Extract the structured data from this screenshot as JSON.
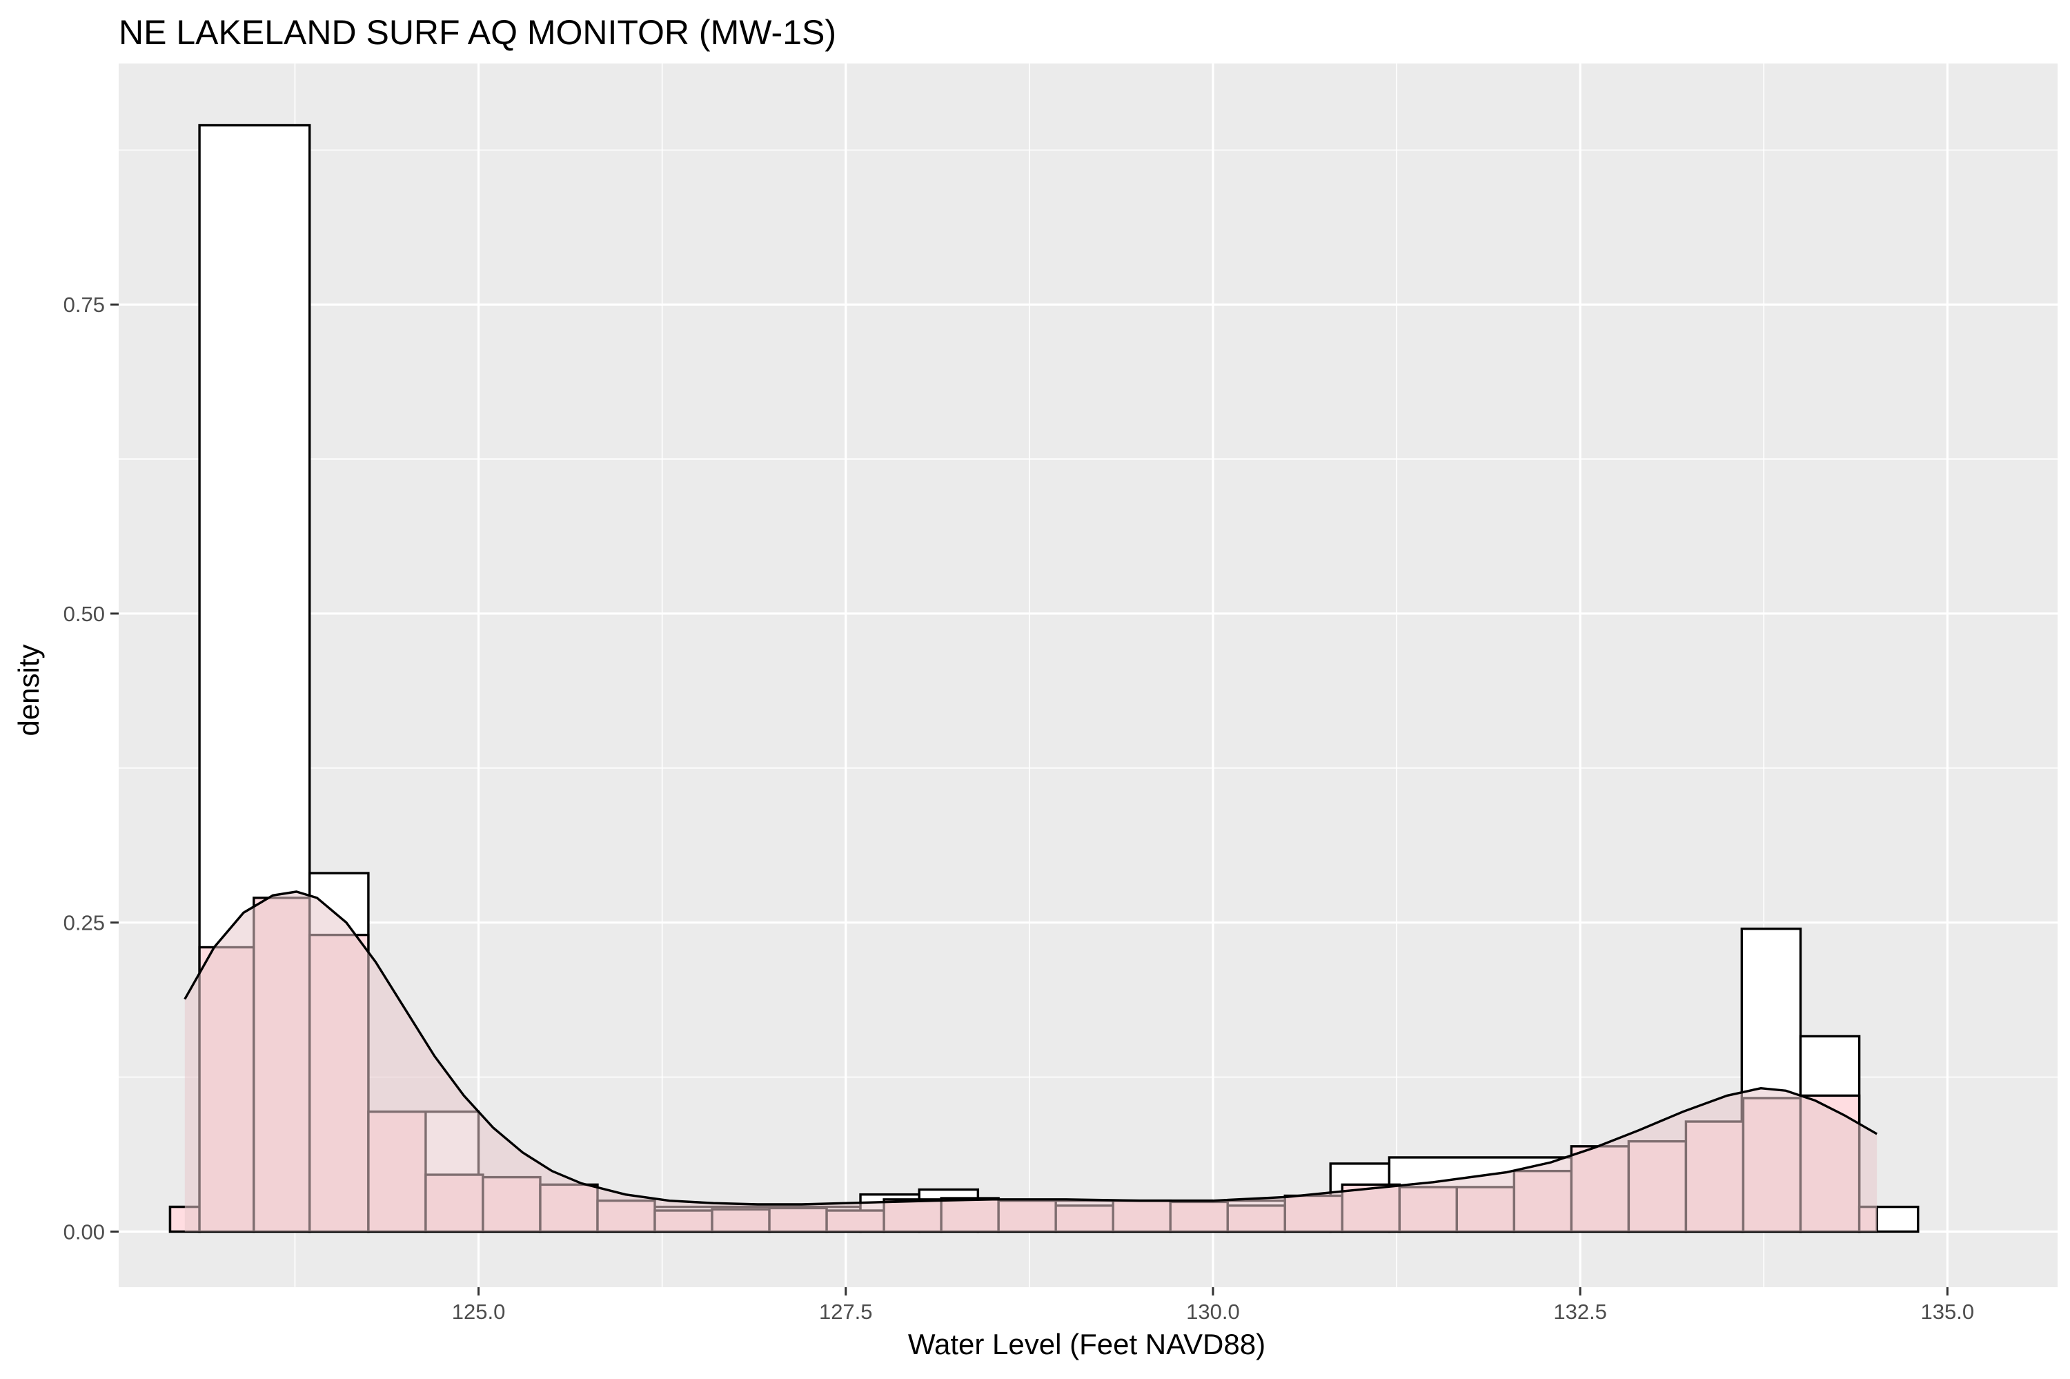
{
  "chart_data": {
    "type": "histogram",
    "title": "NE LAKELAND SURF AQ MONITOR (MW-1S)",
    "xlabel": "Water Level (Feet NAVD88)",
    "ylabel": "density",
    "xlim": [
      122.55,
      135.75
    ],
    "ylim": [
      -0.045,
      0.945
    ],
    "x_ticks": [
      125.0,
      127.5,
      130.0,
      132.5,
      135.0
    ],
    "x_tick_labels": [
      "125.0",
      "127.5",
      "130.0",
      "132.5",
      "135.0"
    ],
    "y_ticks": [
      0.0,
      0.25,
      0.5,
      0.75
    ],
    "y_tick_labels": [
      "0.00",
      "0.25",
      "0.50",
      "0.75"
    ],
    "grid": true,
    "colors": {
      "panel": "#ebebeb",
      "grid": "#ffffff",
      "histogram_outline_fill": "#ffffff",
      "histogram_pink_fill": "#ffdde1",
      "density_fill": "#e8c9cc"
    },
    "series": [
      {
        "kind": "histogram",
        "fill": "#ffffff",
        "bins": [
          {
            "x0": 122.9,
            "x1": 123.1,
            "value": 0.02
          },
          {
            "x0": 123.1,
            "x1": 123.85,
            "value": 0.895
          },
          {
            "x0": 123.85,
            "x1": 124.25,
            "value": 0.29
          },
          {
            "x0": 124.25,
            "x1": 125.0,
            "value": 0.097
          },
          {
            "x0": 125.0,
            "x1": 127.6,
            "value": 0.02
          },
          {
            "x0": 127.6,
            "x1": 128.0,
            "value": 0.03
          },
          {
            "x0": 128.0,
            "x1": 128.4,
            "value": 0.034
          },
          {
            "x0": 128.4,
            "x1": 130.8,
            "value": 0.025
          },
          {
            "x0": 130.8,
            "x1": 131.2,
            "value": 0.055
          },
          {
            "x0": 131.2,
            "x1": 133.6,
            "value": 0.06
          },
          {
            "x0": 133.6,
            "x1": 134.0,
            "value": 0.245
          },
          {
            "x0": 134.0,
            "x1": 134.4,
            "value": 0.158
          },
          {
            "x0": 134.4,
            "x1": 134.8,
            "value": 0.02
          }
        ]
      },
      {
        "kind": "histogram",
        "fill": "#ffdde1",
        "bins": [
          {
            "x0": 122.9,
            "x1": 123.1,
            "value": 0.02
          },
          {
            "x0": 123.1,
            "x1": 123.47,
            "value": 0.23
          },
          {
            "x0": 123.47,
            "x1": 123.85,
            "value": 0.27
          },
          {
            "x0": 123.85,
            "x1": 124.25,
            "value": 0.24
          },
          {
            "x0": 124.25,
            "x1": 124.64,
            "value": 0.097
          },
          {
            "x0": 124.64,
            "x1": 125.03,
            "value": 0.046
          },
          {
            "x0": 125.03,
            "x1": 125.42,
            "value": 0.044
          },
          {
            "x0": 125.42,
            "x1": 125.81,
            "value": 0.038
          },
          {
            "x0": 125.81,
            "x1": 126.2,
            "value": 0.025
          },
          {
            "x0": 126.2,
            "x1": 126.59,
            "value": 0.017
          },
          {
            "x0": 126.59,
            "x1": 126.98,
            "value": 0.018
          },
          {
            "x0": 126.98,
            "x1": 127.37,
            "value": 0.019
          },
          {
            "x0": 127.37,
            "x1": 127.76,
            "value": 0.017
          },
          {
            "x0": 127.76,
            "x1": 128.15,
            "value": 0.026
          },
          {
            "x0": 128.15,
            "x1": 128.54,
            "value": 0.027
          },
          {
            "x0": 128.54,
            "x1": 128.93,
            "value": 0.025
          },
          {
            "x0": 128.93,
            "x1": 129.32,
            "value": 0.021
          },
          {
            "x0": 129.32,
            "x1": 129.71,
            "value": 0.025
          },
          {
            "x0": 129.71,
            "x1": 130.1,
            "value": 0.024
          },
          {
            "x0": 130.1,
            "x1": 130.49,
            "value": 0.021
          },
          {
            "x0": 130.49,
            "x1": 130.88,
            "value": 0.029
          },
          {
            "x0": 130.88,
            "x1": 131.27,
            "value": 0.038
          },
          {
            "x0": 131.27,
            "x1": 131.66,
            "value": 0.036
          },
          {
            "x0": 131.66,
            "x1": 132.05,
            "value": 0.036
          },
          {
            "x0": 132.05,
            "x1": 132.44,
            "value": 0.049
          },
          {
            "x0": 132.44,
            "x1": 132.83,
            "value": 0.069
          },
          {
            "x0": 132.83,
            "x1": 133.22,
            "value": 0.073
          },
          {
            "x0": 133.22,
            "x1": 133.61,
            "value": 0.089
          },
          {
            "x0": 133.61,
            "x1": 134.0,
            "value": 0.108
          },
          {
            "x0": 134.0,
            "x1": 134.4,
            "value": 0.11
          },
          {
            "x0": 134.4,
            "x1": 134.52,
            "value": 0.02
          }
        ]
      },
      {
        "kind": "density",
        "fill": "#e8c9cc",
        "fill_opacity": 0.55,
        "x": [
          123.0,
          123.2,
          123.4,
          123.6,
          123.76,
          123.9,
          124.1,
          124.3,
          124.5,
          124.7,
          124.9,
          125.1,
          125.3,
          125.5,
          125.7,
          126.0,
          126.3,
          126.6,
          126.9,
          127.2,
          127.5,
          127.8,
          128.1,
          128.5,
          129.0,
          129.5,
          130.0,
          130.5,
          131.0,
          131.5,
          132.0,
          132.3,
          132.6,
          132.9,
          133.2,
          133.5,
          133.73,
          133.9,
          134.1,
          134.3,
          134.52
        ],
        "y": [
          0.188,
          0.23,
          0.258,
          0.272,
          0.275,
          0.27,
          0.25,
          0.218,
          0.18,
          0.142,
          0.11,
          0.084,
          0.064,
          0.049,
          0.039,
          0.03,
          0.025,
          0.023,
          0.022,
          0.022,
          0.023,
          0.024,
          0.025,
          0.026,
          0.026,
          0.025,
          0.025,
          0.028,
          0.034,
          0.04,
          0.048,
          0.056,
          0.068,
          0.082,
          0.097,
          0.11,
          0.116,
          0.114,
          0.106,
          0.094,
          0.079
        ]
      }
    ]
  }
}
